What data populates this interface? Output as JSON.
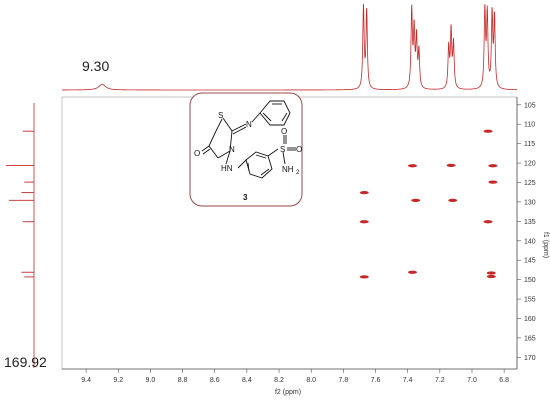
{
  "chart_data": {
    "type": "scatter",
    "subtype": "2D NMR correlation spectrum (HSQC)",
    "xlabel": "f2 (ppm)",
    "ylabel": "f1 (ppm)",
    "xlim": [
      9.55,
      6.72
    ],
    "ylim": [
      103,
      173
    ],
    "x_reversed": true,
    "y_reversed": true,
    "x_ticks": [
      9.4,
      9.2,
      9.0,
      8.8,
      8.6,
      8.4,
      8.2,
      8.0,
      7.8,
      7.6,
      7.4,
      7.2,
      7.0,
      6.8
    ],
    "y_ticks": [
      105,
      110,
      115,
      120,
      125,
      130,
      135,
      140,
      145,
      150,
      155,
      160,
      165,
      170
    ],
    "grid": false,
    "colors": {
      "spectrum": "#c62828",
      "axis": "#555555"
    },
    "cross_peaks": [
      {
        "x": 6.9,
        "y": 111.8
      },
      {
        "x": 7.37,
        "y": 120.7
      },
      {
        "x": 7.13,
        "y": 120.6
      },
      {
        "x": 6.87,
        "y": 120.7
      },
      {
        "x": 6.87,
        "y": 124.9
      },
      {
        "x": 7.67,
        "y": 127.6
      },
      {
        "x": 7.35,
        "y": 129.6
      },
      {
        "x": 7.12,
        "y": 129.6
      },
      {
        "x": 7.67,
        "y": 135.1
      },
      {
        "x": 6.9,
        "y": 135.1
      },
      {
        "x": 7.37,
        "y": 148.1
      },
      {
        "x": 6.88,
        "y": 148.3
      },
      {
        "x": 7.67,
        "y": 149.3
      },
      {
        "x": 6.88,
        "y": 149.2
      }
    ],
    "proton_projection_peaks": [
      {
        "x": 9.3,
        "height": 0.07,
        "width": 0.025
      },
      {
        "x": 7.675,
        "height": 1.0,
        "width": 0.005
      },
      {
        "x": 7.655,
        "height": 0.95,
        "width": 0.005
      },
      {
        "x": 7.375,
        "height": 0.95,
        "width": 0.005
      },
      {
        "x": 7.36,
        "height": 0.7,
        "width": 0.005
      },
      {
        "x": 7.345,
        "height": 0.6,
        "width": 0.005
      },
      {
        "x": 7.33,
        "height": 0.45,
        "width": 0.005
      },
      {
        "x": 7.145,
        "height": 0.5,
        "width": 0.005
      },
      {
        "x": 7.13,
        "height": 0.7,
        "width": 0.005
      },
      {
        "x": 7.115,
        "height": 0.55,
        "width": 0.005
      },
      {
        "x": 6.92,
        "height": 0.95,
        "width": 0.005
      },
      {
        "x": 6.905,
        "height": 0.9,
        "width": 0.005
      },
      {
        "x": 6.875,
        "height": 0.9,
        "width": 0.005
      },
      {
        "x": 6.86,
        "height": 0.85,
        "width": 0.005
      }
    ],
    "carbon_projection_peaks": [
      {
        "y": 111.8,
        "height": 0.4
      },
      {
        "y": 120.6,
        "height": 1.0
      },
      {
        "y": 124.9,
        "height": 0.35
      },
      {
        "y": 127.6,
        "height": 0.45
      },
      {
        "y": 129.6,
        "height": 0.9
      },
      {
        "y": 135.1,
        "height": 0.4
      },
      {
        "y": 148.1,
        "height": 0.45
      },
      {
        "y": 149.3,
        "height": 0.35
      }
    ],
    "annotations": [
      {
        "text": "9.30"
      },
      {
        "text": "169.92"
      }
    ]
  },
  "structure": {
    "compound_number": "3",
    "atom_labels": {
      "sulfur": "S",
      "oxygen": "O",
      "nitrogen_ring": "N",
      "nitrogen_imine": "N",
      "amine": "HN",
      "sulfonyl_s": "S",
      "sulfonyl_o1": "O",
      "sulfonyl_o2": "O",
      "amide_nh": "NH",
      "amide_sub": "2"
    }
  }
}
